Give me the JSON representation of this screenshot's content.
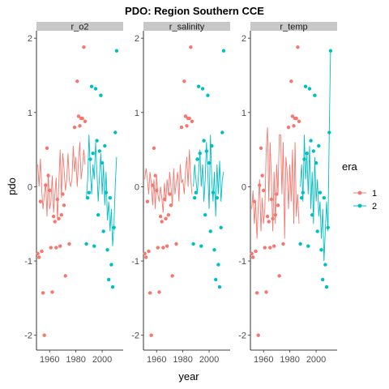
{
  "chart_data": {
    "type": "scatter",
    "title": "PDO: Region Southern CCE",
    "xlabel": "year",
    "ylabel": "pdo",
    "xlim": [
      1950,
      2016
    ],
    "ylim": [
      -2.2,
      2.1
    ],
    "x_ticks": [
      1960,
      1980,
      2000
    ],
    "y_ticks": [
      -2,
      -1,
      0,
      1,
      2
    ],
    "grid": false,
    "legend": {
      "title": "era",
      "position": "right",
      "entries": [
        {
          "label": "1",
          "color": "#F8766D"
        },
        {
          "label": "2",
          "color": "#00BFC4"
        }
      ]
    },
    "colors": {
      "era1": "#F8766D",
      "era2": "#00BFC4",
      "strip": "#c8c8c8"
    },
    "pdo_points": [
      {
        "year": 1951,
        "pdo": -0.9,
        "era": 1
      },
      {
        "year": 1952,
        "pdo": -0.95,
        "era": 1
      },
      {
        "year": 1953,
        "pdo": -0.2,
        "era": 1
      },
      {
        "year": 1954,
        "pdo": -0.87,
        "era": 1
      },
      {
        "year": 1955,
        "pdo": -1.43,
        "era": 1
      },
      {
        "year": 1956,
        "pdo": -2.0,
        "era": 1
      },
      {
        "year": 1957,
        "pdo": 0.02,
        "era": 1
      },
      {
        "year": 1958,
        "pdo": 0.52,
        "era": 1
      },
      {
        "year": 1959,
        "pdo": 0.15,
        "era": 1
      },
      {
        "year": 1960,
        "pdo": -0.05,
        "era": 1
      },
      {
        "year": 1961,
        "pdo": -0.82,
        "era": 1
      },
      {
        "year": 1962,
        "pdo": -1.42,
        "era": 1
      },
      {
        "year": 1963,
        "pdo": -0.4,
        "era": 1
      },
      {
        "year": 1964,
        "pdo": -0.47,
        "era": 1
      },
      {
        "year": 1965,
        "pdo": -0.82,
        "era": 1
      },
      {
        "year": 1966,
        "pdo": -0.17,
        "era": 1
      },
      {
        "year": 1967,
        "pdo": -0.43,
        "era": 1
      },
      {
        "year": 1968,
        "pdo": -0.8,
        "era": 1
      },
      {
        "year": 1969,
        "pdo": -0.38,
        "era": 1
      },
      {
        "year": 1970,
        "pdo": -0.1,
        "era": 1
      },
      {
        "year": 1971,
        "pdo": -0.25,
        "era": 1
      },
      {
        "year": 1972,
        "pdo": -1.2,
        "era": 1
      },
      {
        "year": 1975,
        "pdo": -0.77,
        "era": 1
      },
      {
        "year": 1979,
        "pdo": 0.8,
        "era": 1
      },
      {
        "year": 1981,
        "pdo": 1.42,
        "era": 1
      },
      {
        "year": 1982,
        "pdo": 0.95,
        "era": 1
      },
      {
        "year": 1983,
        "pdo": 0.82,
        "era": 1
      },
      {
        "year": 1984,
        "pdo": 0.92,
        "era": 1
      },
      {
        "year": 1985,
        "pdo": 0.92,
        "era": 1
      },
      {
        "year": 1986,
        "pdo": 1.88,
        "era": 1
      },
      {
        "year": 1987,
        "pdo": 0.88,
        "era": 1
      },
      {
        "year": 1988,
        "pdo": -0.77,
        "era": 2
      },
      {
        "year": 1989,
        "pdo": -0.15,
        "era": 2
      },
      {
        "year": 1990,
        "pdo": -0.08,
        "era": 2
      },
      {
        "year": 1991,
        "pdo": 0.37,
        "era": 2
      },
      {
        "year": 1992,
        "pdo": 1.35,
        "era": 2
      },
      {
        "year": 1993,
        "pdo": 0.45,
        "era": 2
      },
      {
        "year": 1994,
        "pdo": -0.8,
        "era": 2
      },
      {
        "year": 1995,
        "pdo": 1.32,
        "era": 2
      },
      {
        "year": 1996,
        "pdo": 0.62,
        "era": 2
      },
      {
        "year": 1997,
        "pdo": -0.38,
        "era": 2
      },
      {
        "year": 1998,
        "pdo": 0.48,
        "era": 2
      },
      {
        "year": 1999,
        "pdo": 1.23,
        "era": 2
      },
      {
        "year": 2000,
        "pdo": 0.32,
        "era": 2
      },
      {
        "year": 2001,
        "pdo": -0.6,
        "era": 2
      },
      {
        "year": 2002,
        "pdo": 0.55,
        "era": 2
      },
      {
        "year": 2003,
        "pdo": -0.08,
        "era": 2
      },
      {
        "year": 2004,
        "pdo": -0.85,
        "era": 2
      },
      {
        "year": 2005,
        "pdo": -1.25,
        "era": 2
      },
      {
        "year": 2006,
        "pdo": -0.15,
        "era": 2
      },
      {
        "year": 2007,
        "pdo": -1.05,
        "era": 2
      },
      {
        "year": 2008,
        "pdo": -1.35,
        "era": 2
      },
      {
        "year": 2009,
        "pdo": -0.55,
        "era": 2
      },
      {
        "year": 2010,
        "pdo": 0.73,
        "era": 2
      },
      {
        "year": 2011,
        "pdo": 1.83,
        "era": 2
      }
    ],
    "panels": [
      {
        "name": "r_o2",
        "lines": [
          {
            "era": 1,
            "points": [
              [
                1951,
                0.3
              ],
              [
                1952,
                0.0
              ],
              [
                1953,
                0.38
              ],
              [
                1954,
                -0.05
              ],
              [
                1955,
                -0.3
              ],
              [
                1956,
                -0.1
              ],
              [
                1957,
                0.05
              ],
              [
                1958,
                -0.4
              ],
              [
                1959,
                0.18
              ],
              [
                1960,
                -0.3
              ],
              [
                1961,
                -0.2
              ],
              [
                1962,
                0.15
              ],
              [
                1963,
                -0.35
              ],
              [
                1964,
                -0.1
              ],
              [
                1965,
                0.12
              ],
              [
                1966,
                -0.45
              ],
              [
                1967,
                0.05
              ],
              [
                1968,
                0.5
              ],
              [
                1969,
                -0.15
              ],
              [
                1970,
                0.45
              ],
              [
                1971,
                0.25
              ],
              [
                1972,
                -0.05
              ],
              [
                1973,
                0.1
              ],
              [
                1974,
                0.45
              ],
              [
                1975,
                0.1
              ],
              [
                1976,
                0.0
              ],
              [
                1977,
                0.1
              ],
              [
                1978,
                0.55
              ],
              [
                1979,
                0.2
              ],
              [
                1980,
                0.4
              ],
              [
                1981,
                0.0
              ],
              [
                1982,
                0.35
              ],
              [
                1983,
                0.6
              ],
              [
                1984,
                0.1
              ],
              [
                1985,
                0.25
              ],
              [
                1986,
                0.5
              ],
              [
                1987,
                0.3
              ]
            ]
          },
          {
            "era": 2,
            "points": [
              [
                1988,
                -0.15
              ],
              [
                1989,
                0.1
              ],
              [
                1990,
                0.7
              ],
              [
                1991,
                0.2
              ],
              [
                1992,
                -0.1
              ],
              [
                1993,
                0.3
              ],
              [
                1994,
                0.1
              ],
              [
                1995,
                0.6
              ],
              [
                1996,
                0.2
              ],
              [
                1997,
                -0.2
              ],
              [
                1998,
                0.15
              ],
              [
                1999,
                0.45
              ],
              [
                2000,
                -0.1
              ],
              [
                2001,
                0.3
              ],
              [
                2002,
                -0.25
              ],
              [
                2003,
                0.2
              ],
              [
                2004,
                -0.45
              ],
              [
                2005,
                -0.2
              ],
              [
                2006,
                -0.6
              ],
              [
                2007,
                -0.3
              ],
              [
                2008,
                -0.8
              ],
              [
                2009,
                -0.5
              ],
              [
                2010,
                0.05
              ],
              [
                2011,
                0.4
              ]
            ]
          }
        ]
      },
      {
        "name": "r_salinity",
        "lines": [
          {
            "era": 1,
            "points": [
              [
                1951,
                0.1
              ],
              [
                1952,
                0.25
              ],
              [
                1953,
                0.1
              ],
              [
                1954,
                -0.1
              ],
              [
                1955,
                0.2
              ],
              [
                1956,
                0.05
              ],
              [
                1957,
                -0.25
              ],
              [
                1958,
                0.1
              ],
              [
                1959,
                -0.3
              ],
              [
                1960,
                0.15
              ],
              [
                1961,
                -0.1
              ],
              [
                1962,
                -0.2
              ],
              [
                1963,
                0.0
              ],
              [
                1964,
                -0.15
              ],
              [
                1965,
                -0.35
              ],
              [
                1966,
                0.05
              ],
              [
                1967,
                -0.2
              ],
              [
                1968,
                0.1
              ],
              [
                1969,
                -0.1
              ],
              [
                1970,
                0.2
              ],
              [
                1971,
                0.0
              ],
              [
                1972,
                -0.25
              ],
              [
                1973,
                0.25
              ],
              [
                1974,
                -0.1
              ],
              [
                1975,
                0.05
              ],
              [
                1976,
                0.2
              ],
              [
                1977,
                -0.2
              ],
              [
                1978,
                0.3
              ],
              [
                1979,
                0.05
              ],
              [
                1980,
                0.1
              ],
              [
                1981,
                -0.1
              ],
              [
                1982,
                0.2
              ],
              [
                1983,
                0.4
              ],
              [
                1984,
                0.0
              ],
              [
                1985,
                0.5
              ],
              [
                1986,
                0.1
              ],
              [
                1987,
                -0.1
              ]
            ]
          },
          {
            "era": 2,
            "points": [
              [
                1988,
                0.0
              ],
              [
                1989,
                0.3
              ],
              [
                1990,
                0.1
              ],
              [
                1991,
                -0.1
              ],
              [
                1992,
                0.2
              ],
              [
                1993,
                0.5
              ],
              [
                1994,
                0.0
              ],
              [
                1995,
                0.3
              ],
              [
                1996,
                -0.2
              ],
              [
                1997,
                0.1
              ],
              [
                1998,
                0.6
              ],
              [
                1999,
                0.2
              ],
              [
                2000,
                -0.3
              ],
              [
                2001,
                0.7
              ],
              [
                2002,
                0.1
              ],
              [
                2003,
                -0.2
              ],
              [
                2004,
                0.2
              ],
              [
                2005,
                -0.4
              ],
              [
                2006,
                0.3
              ],
              [
                2007,
                -0.1
              ],
              [
                2008,
                0.35
              ],
              [
                2009,
                -0.2
              ],
              [
                2010,
                0.1
              ],
              [
                2011,
                0.2
              ]
            ]
          }
        ]
      },
      {
        "name": "r_temp",
        "lines": [
          {
            "era": 1,
            "points": [
              [
                1951,
                -0.3
              ],
              [
                1952,
                -0.05
              ],
              [
                1953,
                -0.5
              ],
              [
                1954,
                -0.2
              ],
              [
                1955,
                -0.7
              ],
              [
                1956,
                -0.25
              ],
              [
                1957,
                0.1
              ],
              [
                1958,
                -0.6
              ],
              [
                1959,
                -0.15
              ],
              [
                1960,
                -0.5
              ],
              [
                1961,
                -0.3
              ],
              [
                1962,
                0.5
              ],
              [
                1963,
                0.8
              ],
              [
                1964,
                -0.2
              ],
              [
                1965,
                0.6
              ],
              [
                1966,
                0.1
              ],
              [
                1967,
                -0.6
              ],
              [
                1968,
                0.2
              ],
              [
                1969,
                -0.5
              ],
              [
                1970,
                0.3
              ],
              [
                1971,
                -0.1
              ],
              [
                1972,
                0.7
              ],
              [
                1973,
                0.7
              ],
              [
                1974,
                -0.1
              ],
              [
                1975,
                0.6
              ],
              [
                1976,
                -0.7
              ],
              [
                1977,
                0.4
              ],
              [
                1978,
                0.2
              ],
              [
                1979,
                -0.3
              ],
              [
                1980,
                0.3
              ],
              [
                1981,
                -0.2
              ],
              [
                1982,
                0.5
              ],
              [
                1983,
                -0.5
              ],
              [
                1984,
                0.6
              ],
              [
                1985,
                -0.4
              ],
              [
                1986,
                -0.1
              ],
              [
                1987,
                -0.5
              ]
            ]
          },
          {
            "era": 2,
            "points": [
              [
                1988,
                0.0
              ],
              [
                1989,
                0.3
              ],
              [
                1990,
                -0.2
              ],
              [
                1991,
                0.7
              ],
              [
                1992,
                0.1
              ],
              [
                1993,
                0.45
              ],
              [
                1994,
                -0.1
              ],
              [
                1995,
                0.55
              ],
              [
                1996,
                -0.3
              ],
              [
                1997,
                0.2
              ],
              [
                1998,
                -0.5
              ],
              [
                1999,
                0.4
              ],
              [
                2000,
                -0.2
              ],
              [
                2001,
                0.1
              ],
              [
                2002,
                -0.4
              ],
              [
                2003,
                -0.2
              ],
              [
                2004,
                -0.7
              ],
              [
                2005,
                -0.3
              ],
              [
                2006,
                -1.0
              ],
              [
                2007,
                -0.6
              ],
              [
                2008,
                -0.2
              ],
              [
                2009,
                -0.6
              ],
              [
                2010,
                0.75
              ],
              [
                2011,
                1.85
              ]
            ]
          }
        ]
      }
    ]
  }
}
